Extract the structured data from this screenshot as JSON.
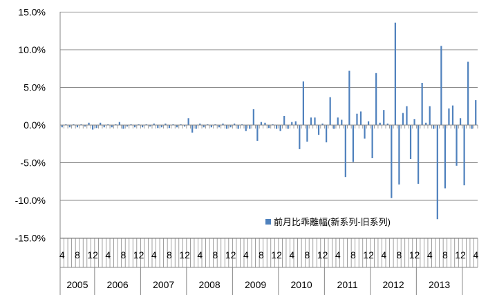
{
  "chart_data": {
    "type": "bar",
    "title": "",
    "xlabel": "",
    "ylabel": "",
    "ylim": [
      -15,
      15
    ],
    "y_ticks": [
      15,
      10,
      5,
      0,
      -5,
      -10,
      -15
    ],
    "y_tick_labels": [
      "15.0%",
      "10.0%",
      "5.0%",
      "0.0%",
      "-5.0%",
      "-10.0%",
      "-15.0%"
    ],
    "grid": "horizontal",
    "legend_position": "lower-right, inside plot",
    "bar_color": "#4f81bd",
    "x_start_month": 4,
    "month_tick_labels": [
      "4",
      "8",
      "12"
    ],
    "years": [
      "2005",
      "2006",
      "2007",
      "2008",
      "2009",
      "2010",
      "2011",
      "2012",
      "2013"
    ],
    "series": [
      {
        "name": "前月比乖離幅(新系列-旧系列)",
        "values": [
          -0.3,
          0.1,
          -0.3,
          0.1,
          -0.3,
          0.1,
          -0.2,
          0.3,
          -0.6,
          -0.4,
          0.3,
          -0.3,
          0.1,
          -0.3,
          0.1,
          0.4,
          -0.5,
          -0.2,
          0.1,
          -0.3,
          0.1,
          -0.3,
          0.1,
          -0.2,
          0.2,
          -0.4,
          -0.3,
          0.2,
          -0.4,
          0.1,
          -0.3,
          0.1,
          -0.2,
          0.9,
          -1.0,
          -0.5,
          0.2,
          -0.3,
          0.1,
          -0.3,
          0.1,
          -0.3,
          0.2,
          -0.5,
          -0.3,
          0.2,
          -0.5,
          0.1,
          -0.8,
          -0.5,
          2.1,
          -2.1,
          0.4,
          0.3,
          -0.4,
          0.1,
          -0.5,
          -0.8,
          1.2,
          -0.5,
          0.4,
          0.5,
          -3.2,
          5.8,
          -2.2,
          1.0,
          1.0,
          -1.3,
          0.2,
          -2.3,
          3.7,
          -0.5,
          1.0,
          0.7,
          -6.9,
          7.2,
          -4.9,
          1.5,
          1.8,
          -1.8,
          0.5,
          -4.4,
          6.9,
          0.3,
          2.0,
          0.2,
          -9.7,
          13.6,
          -7.9,
          1.6,
          2.5,
          -4.5,
          0.8,
          -7.8,
          5.6,
          0.3,
          2.5,
          -0.5,
          -12.5,
          10.5,
          -8.4,
          2.2,
          2.6,
          -5.4,
          0.9,
          -8.0,
          8.4,
          -0.5,
          3.3
        ]
      }
    ]
  }
}
